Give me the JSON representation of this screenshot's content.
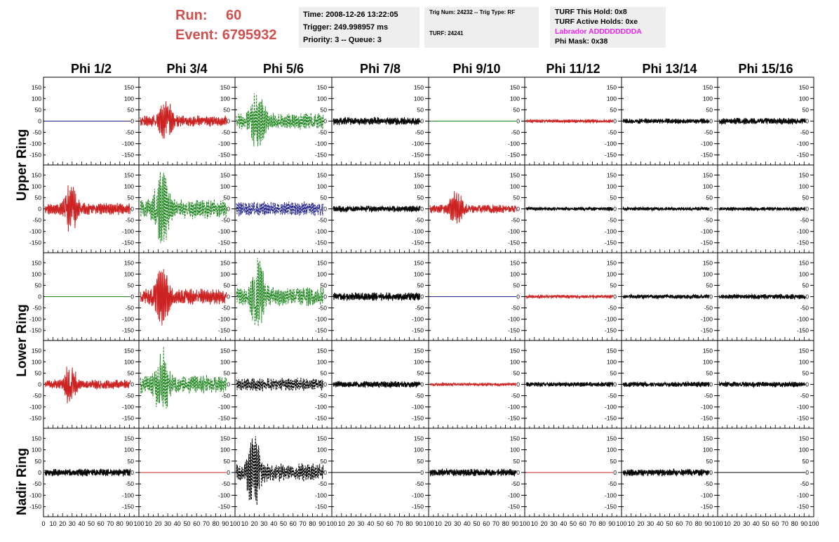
{
  "run": {
    "run_label": "Run:",
    "run_value": "60",
    "event_label": "Event:",
    "event_value": "6795932"
  },
  "info1": {
    "time": "Time: 2008-12-26 13:22:05",
    "trigger": "Trigger: 249.998957 ms",
    "priority": "Priority: 3 -- Queue: 3"
  },
  "info2": {
    "trig": "Trig Num: 24232 -- Trig Type: RF",
    "turf": "TURF: 24241"
  },
  "info3": {
    "hold": "TURF This Hold: 0x8",
    "active": "TURF Active Holds: 0xe",
    "labrador": "Labrador ADDDDDDDDA",
    "phimask": "Phi Mask: 0x38"
  },
  "columns": [
    "Phi 1/2",
    "Phi 3/4",
    "Phi 5/6",
    "Phi 7/8",
    "Phi 9/10",
    "Phi 11/12",
    "Phi 13/14",
    "Phi 15/16"
  ],
  "ring_labels": [
    "Upper Ring",
    "Lower Ring",
    "Nadir Ring"
  ],
  "y_ticks": [
    "150",
    "100",
    "50",
    "0",
    "-50",
    "-100",
    "-150"
  ],
  "x_ticks": [
    "0",
    "10",
    "20",
    "30",
    "40",
    "50",
    "60",
    "70",
    "80",
    "90",
    "100"
  ],
  "colors": {
    "red": "#cc2222",
    "green": "#228822",
    "blue": "#22228a",
    "black": "#000000"
  },
  "panels": [
    [
      {
        "c": "blue",
        "amp": 0,
        "flat": 1
      },
      {
        "c": "red",
        "amp": 95,
        "pulse": 30
      },
      {
        "c": "green",
        "amp": 140,
        "pulse": 25,
        "dash": 1
      },
      {
        "c": "black",
        "amp": 48
      },
      {
        "c": "green",
        "amp": 0,
        "flat": 1
      },
      {
        "c": "red",
        "amp": 20
      },
      {
        "c": "black",
        "amp": 30
      },
      {
        "c": "black",
        "amp": 38
      }
    ],
    [
      {
        "c": "red",
        "amp": 100,
        "pulse": 30
      },
      {
        "c": "green",
        "amp": 170,
        "pulse": 25,
        "dash": 1
      },
      {
        "c": "blue",
        "amp": 90,
        "dash": 1
      },
      {
        "c": "black",
        "amp": 38
      },
      {
        "c": "red",
        "amp": 75,
        "pulse": 30
      },
      {
        "c": "black",
        "amp": 22
      },
      {
        "c": "black",
        "amp": 22
      },
      {
        "c": "black",
        "amp": 22
      }
    ],
    [
      {
        "c": "green",
        "amp": 0,
        "flat": 1
      },
      {
        "c": "red",
        "amp": 130,
        "pulse": 25
      },
      {
        "c": "green",
        "amp": 160,
        "pulse": 25,
        "dash": 1
      },
      {
        "c": "black",
        "amp": 50
      },
      {
        "c": "blue",
        "amp": 0,
        "flat": 1
      },
      {
        "c": "red",
        "amp": 20
      },
      {
        "c": "black",
        "amp": 25
      },
      {
        "c": "black",
        "amp": 30
      }
    ],
    [
      {
        "c": "red",
        "amp": 80,
        "pulse": 30
      },
      {
        "c": "green",
        "amp": 155,
        "pulse": 25,
        "dash": 1
      },
      {
        "c": "black",
        "amp": 80,
        "dash": 1
      },
      {
        "c": "black",
        "amp": 40
      },
      {
        "c": "red",
        "amp": 18
      },
      {
        "c": "black",
        "amp": 28
      },
      {
        "c": "black",
        "amp": 30
      },
      {
        "c": "black",
        "amp": 32
      }
    ],
    [
      {
        "c": "black",
        "amp": 45
      },
      {
        "c": "red",
        "amp": 0,
        "flat": 1
      },
      {
        "c": "black",
        "amp": 150,
        "pulse": 20,
        "dash": 1
      },
      {
        "c": "black",
        "amp": 0,
        "flat": 1
      },
      {
        "c": "black",
        "amp": 45
      },
      {
        "c": "red",
        "amp": 0,
        "flat": 1
      },
      {
        "c": "black",
        "amp": 42
      },
      {
        "c": "black",
        "amp": 0,
        "flat": 1
      }
    ]
  ]
}
